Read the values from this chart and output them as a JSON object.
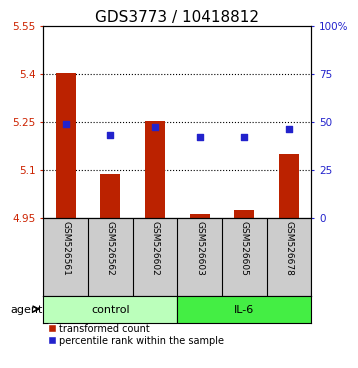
{
  "title": "GDS3773 / 10418812",
  "samples": [
    "GSM526561",
    "GSM526562",
    "GSM526602",
    "GSM526603",
    "GSM526605",
    "GSM526678"
  ],
  "bar_values": [
    5.401,
    5.085,
    5.251,
    4.96,
    4.975,
    5.15
  ],
  "dot_values": [
    48.5,
    43.0,
    47.0,
    42.0,
    42.0,
    46.0
  ],
  "bar_color": "#bb2200",
  "dot_color": "#2222cc",
  "ylim_left": [
    4.95,
    5.55
  ],
  "ylim_right": [
    0,
    100
  ],
  "yticks_left": [
    4.95,
    5.1,
    5.25,
    5.4,
    5.55
  ],
  "yticks_right": [
    0,
    25,
    50,
    75,
    100
  ],
  "ytick_labels_left": [
    "4.95",
    "5.1",
    "5.25",
    "5.4",
    "5.55"
  ],
  "ytick_labels_right": [
    "0",
    "25",
    "50",
    "75",
    "100%"
  ],
  "hlines": [
    5.1,
    5.25,
    5.4
  ],
  "control_color": "#bbffbb",
  "il6_color": "#44ee44",
  "sample_bg_color": "#cccccc",
  "legend_bar_label": "transformed count",
  "legend_dot_label": "percentile rank within the sample",
  "left_tick_color": "#cc2200",
  "right_tick_color": "#2222cc",
  "title_fontsize": 11,
  "tick_fontsize": 7.5,
  "sample_fontsize": 6.5,
  "group_fontsize": 8,
  "legend_fontsize": 7,
  "bar_width": 0.45
}
